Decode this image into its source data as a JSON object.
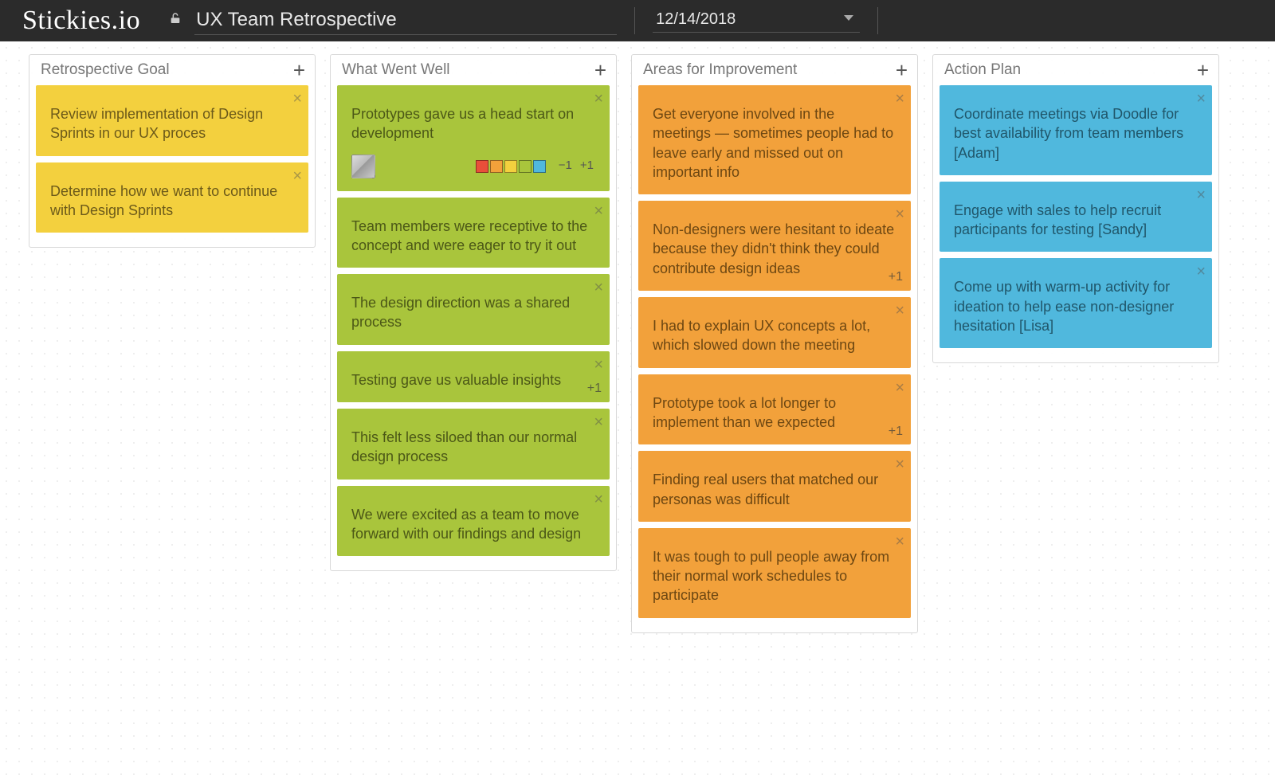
{
  "app": {
    "logo": "Stickies.io"
  },
  "board": {
    "title": "UX Team Retrospective",
    "date": "12/14/2018"
  },
  "palette": {
    "yellow": "#f3d03e",
    "green": "#a9c53c",
    "orange": "#f2a13b",
    "blue": "#50b8dd"
  },
  "swatches": [
    "#e94f3a",
    "#f2a13b",
    "#f3d03e",
    "#a9c53c",
    "#50b8dd"
  ],
  "columns": [
    {
      "title": "Retrospective Goal",
      "color": "yellow",
      "cards": [
        {
          "text": "Review implementation of Design Sprints in our UX proces"
        },
        {
          "text": "Determine how we want to continue with Design Sprints"
        }
      ]
    },
    {
      "title": "What Went Well",
      "color": "green",
      "cards": [
        {
          "text": "Prototypes gave us a head start on development",
          "avatar": true,
          "palette": true,
          "voteButtons": true,
          "minus": "−1",
          "plus": "+1"
        },
        {
          "text": "Team members were receptive to the concept and were eager to try it out"
        },
        {
          "text": "The design direction was a shared process"
        },
        {
          "text": "Testing gave us valuable insights",
          "vote": "+1"
        },
        {
          "text": "This felt less siloed than our normal design process"
        },
        {
          "text": "We were excited as a team to move forward with our findings and design"
        }
      ]
    },
    {
      "title": "Areas for Improvement",
      "color": "orange",
      "cards": [
        {
          "text": "Get everyone involved in the meetings — sometimes people had to leave early and missed out on important info"
        },
        {
          "text": "Non-designers were hesitant to ideate because they didn't think they could contribute design ideas",
          "vote": "+1"
        },
        {
          "text": "I had to explain UX concepts a lot, which slowed down the meeting"
        },
        {
          "text": "Prototype took a lot longer to implement than we expected",
          "vote": "+1"
        },
        {
          "text": "Finding real users that matched our personas was difficult"
        },
        {
          "text": "It was tough to pull people away from their normal work schedules to participate"
        }
      ]
    },
    {
      "title": "Action Plan",
      "color": "blue",
      "cards": [
        {
          "text": "Coordinate meetings via Doodle for best availability from team members [Adam]"
        },
        {
          "text": "Engage with sales to help recruit participants for testing [Sandy]"
        },
        {
          "text": "Come up with warm-up activity for ideation to help ease non-designer hesitation [Lisa]"
        }
      ]
    }
  ]
}
